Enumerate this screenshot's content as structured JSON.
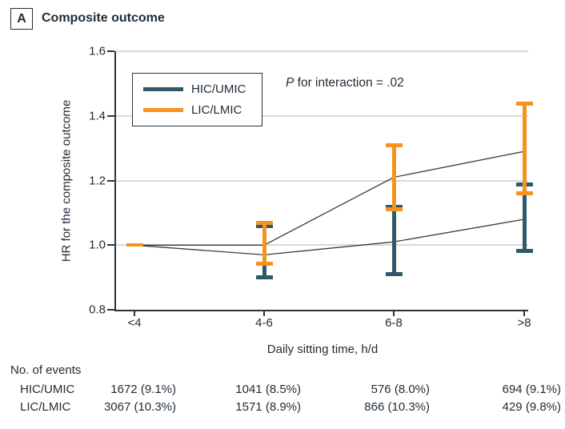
{
  "panel": {
    "label": "A",
    "title": "Composite outcome"
  },
  "annotation": {
    "p_italic": "P",
    "rest": " for interaction = .02"
  },
  "colors": {
    "axis": "#2B333B",
    "grid": "#D9D9D9",
    "trend_line": "#3E3E3E",
    "text": "#1F2B35"
  },
  "chart_data": {
    "type": "line",
    "title": "Composite outcome",
    "xlabel": "Daily sitting time, h/d",
    "ylabel": "HR for the composite outcome",
    "ylim": [
      0.8,
      1.6
    ],
    "yticks": [
      "0.8",
      "1.0",
      "1.2",
      "1.4",
      "1.6"
    ],
    "grid": "horizontal gridlines at 1.0, 1.2, 1.4, 1.6",
    "legend_position": "inside top-left",
    "categories": [
      "<4",
      "4-6",
      "6-8",
      ">8"
    ],
    "series": [
      {
        "name": "HIC/UMIC",
        "color": "#2E5A68",
        "hr": [
          1.0,
          0.97,
          1.01,
          1.08
        ],
        "ci_low": [
          null,
          0.9,
          0.91,
          0.98
        ],
        "ci_high": [
          null,
          1.06,
          1.12,
          1.19
        ]
      },
      {
        "name": "LIC/LMIC",
        "color": "#F6921E",
        "hr": [
          1.0,
          1.0,
          1.21,
          1.29
        ],
        "ci_low": [
          null,
          0.94,
          1.11,
          1.16
        ],
        "ci_high": [
          null,
          1.07,
          1.31,
          1.44
        ]
      }
    ]
  },
  "events_table": {
    "header": "No. of events",
    "rows": [
      {
        "label": "HIC/UMIC",
        "values": [
          "1672 (9.1%)",
          "1041 (8.5%)",
          "576 (8.0%)",
          "694 (9.1%)"
        ]
      },
      {
        "label": "LIC/LMIC",
        "values": [
          "3067 (10.3%)",
          "1571 (8.9%)",
          "866 (10.3%)",
          "429 (9.8%)"
        ]
      }
    ]
  }
}
